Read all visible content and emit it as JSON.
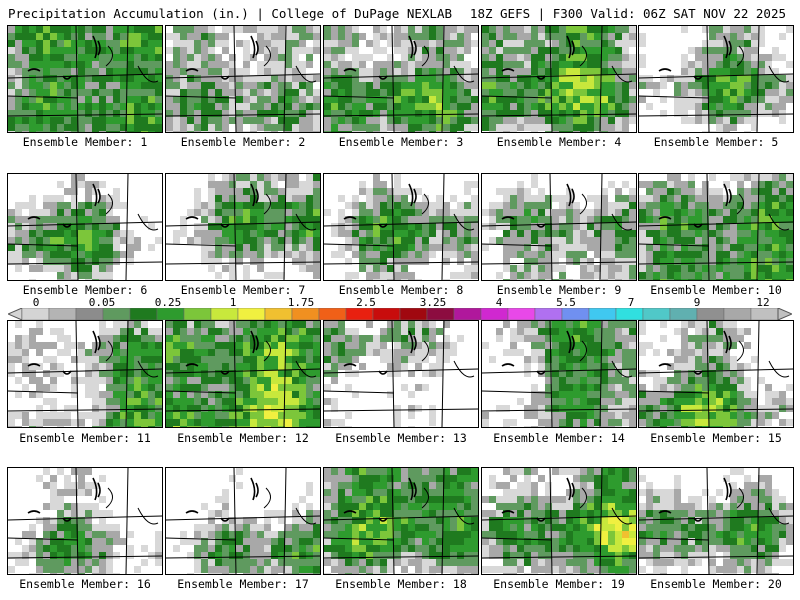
{
  "header": {
    "left_title": "Precipitation Accumulation (in.) | College of DuPage NEXLAB",
    "right_title": "18Z GEFS | F300 Valid: 06Z SAT NOV 22 2025"
  },
  "colorbar": {
    "tick_labels": [
      "0",
      "0.05",
      "0.25",
      "1",
      "1.75",
      "2.5",
      "3.25",
      "4",
      "5.5",
      "7",
      "9",
      "12"
    ],
    "colors": [
      "#d4d4d4",
      "#b4b4b4",
      "#8c8c8c",
      "#5f9a5f",
      "#1f7a1f",
      "#2e9b2e",
      "#7cc63a",
      "#c8e83c",
      "#f0f040",
      "#f0c030",
      "#f09020",
      "#f06018",
      "#e82010",
      "#c80c0c",
      "#a00810",
      "#8c0c40",
      "#b0189c",
      "#d028d0",
      "#e848e8",
      "#b070f0",
      "#7090f0",
      "#40c8f0",
      "#30e0e0",
      "#50c8c8",
      "#60b0b0",
      "#909090",
      "#a8a8a8",
      "#c0c0c0"
    ]
  },
  "members": [
    {
      "label": "Ensemble Member: 1"
    },
    {
      "label": "Ensemble Member: 2"
    },
    {
      "label": "Ensemble Member: 3"
    },
    {
      "label": "Ensemble Member: 4"
    },
    {
      "label": "Ensemble Member: 5"
    },
    {
      "label": "Ensemble Member: 6"
    },
    {
      "label": "Ensemble Member: 7"
    },
    {
      "label": "Ensemble Member: 8"
    },
    {
      "label": "Ensemble Member: 9"
    },
    {
      "label": "Ensemble Member: 10"
    },
    {
      "label": "Ensemble Member: 11"
    },
    {
      "label": "Ensemble Member: 12"
    },
    {
      "label": "Ensemble Member: 13"
    },
    {
      "label": "Ensemble Member: 14"
    },
    {
      "label": "Ensemble Member: 15"
    },
    {
      "label": "Ensemble Member: 16"
    },
    {
      "label": "Ensemble Member: 17"
    },
    {
      "label": "Ensemble Member: 18"
    },
    {
      "label": "Ensemble Member: 19"
    },
    {
      "label": "Ensemble Member: 20"
    }
  ]
}
